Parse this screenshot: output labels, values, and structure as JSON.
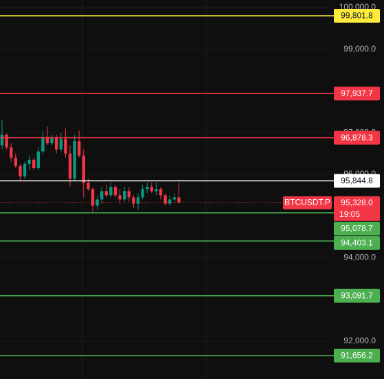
{
  "chart_data": {
    "type": "candlestick",
    "ylim": [
      91095,
      100181
    ],
    "yticks": [
      {
        "value": 100000,
        "label": "100,000.0"
      },
      {
        "value": 99000,
        "label": "99,000.0"
      },
      {
        "value": 97000,
        "label": "97,000.0"
      },
      {
        "value": 96000,
        "label": "96,000.0"
      },
      {
        "value": 94000,
        "label": "94,000.0"
      },
      {
        "value": 92000,
        "label": "92,000.0"
      }
    ],
    "grid": true,
    "up_color": "#089981",
    "down_color": "#f23645",
    "open": [
      96700,
      96950,
      96650,
      96400,
      96200,
      95950,
      96250,
      96350,
      96150,
      96550,
      96900,
      96750,
      96880,
      96600,
      96850,
      96500,
      95900,
      96800,
      96450,
      95800,
      95650,
      95250,
      95400,
      95600,
      95500,
      95700,
      95500,
      95400,
      95600,
      95450,
      95300,
      95450,
      95650,
      95700,
      95600,
      95650,
      95500,
      95300,
      95400,
      95450
    ],
    "high": [
      97300,
      96980,
      96750,
      96500,
      96250,
      96300,
      96450,
      96400,
      96650,
      97050,
      97150,
      96950,
      96950,
      97000,
      97100,
      96700,
      96950,
      97050,
      96600,
      95900,
      95700,
      95500,
      95700,
      95750,
      95800,
      95750,
      95650,
      95700,
      95700,
      95500,
      95550,
      95750,
      95800,
      95800,
      95800,
      95700,
      95550,
      95500,
      95550,
      95800
    ],
    "low": [
      96600,
      96600,
      96300,
      96150,
      95850,
      95900,
      96100,
      96100,
      96100,
      96500,
      96700,
      96700,
      96500,
      96550,
      96400,
      95700,
      95850,
      96400,
      95450,
      95600,
      95100,
      95150,
      95300,
      95450,
      95450,
      95450,
      95300,
      95350,
      95350,
      95200,
      95150,
      95400,
      95550,
      95550,
      95500,
      95400,
      95250,
      95250,
      95350,
      95300
    ],
    "close": [
      96950,
      96650,
      96400,
      96200,
      95950,
      96250,
      96350,
      96150,
      96550,
      96900,
      96750,
      96880,
      96600,
      96850,
      96500,
      95900,
      96800,
      96450,
      95800,
      95650,
      95250,
      95400,
      95600,
      95500,
      95700,
      95500,
      95400,
      95600,
      95450,
      95300,
      95450,
      95650,
      95700,
      95600,
      95650,
      95500,
      95300,
      95400,
      95450,
      95328
    ],
    "price_lines": [
      {
        "value": 99801.8,
        "label": "99,801.8",
        "color": "#ffeb3b",
        "text_color": "#131722"
      },
      {
        "value": 97937.7,
        "label": "97,937.7",
        "color": "#f23645",
        "text_color": "#ffffff"
      },
      {
        "value": 96878.3,
        "label": "96,878.3",
        "color": "#f23645",
        "text_color": "#ffffff"
      },
      {
        "value": 95844.8,
        "label": "95,844.8",
        "color": "#ffffff",
        "text_color": "#131722"
      },
      {
        "value": 95078.7,
        "label": "95,078.7",
        "color": "#4caf50",
        "text_color": "#ffffff"
      },
      {
        "value": 94403.1,
        "label": "94,403.1",
        "color": "#4caf50",
        "text_color": "#ffffff"
      },
      {
        "value": 93091.7,
        "label": "93,091.7",
        "color": "#4caf50",
        "text_color": "#ffffff"
      },
      {
        "value": 91656.2,
        "label": "91,656.2",
        "color": "#4caf50",
        "text_color": "#ffffff"
      }
    ],
    "last_price": {
      "value": 95328.0,
      "label": "95,328.0",
      "symbol": "BTCUSDT.P",
      "countdown": "19:05",
      "color": "#f23645"
    }
  }
}
